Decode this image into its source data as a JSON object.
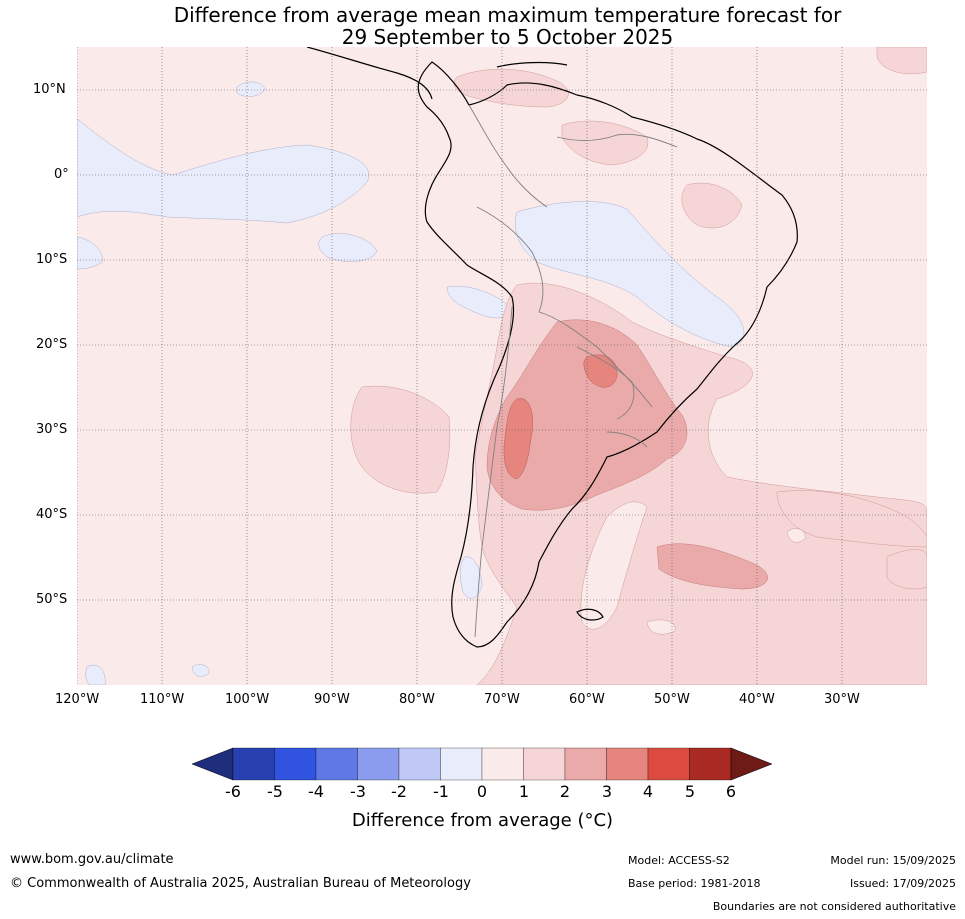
{
  "title": {
    "line1": "Difference from average mean maximum temperature forecast for",
    "line2": "29 September to 5 October 2025"
  },
  "map": {
    "projection": "equirectangular",
    "lon_range": [
      -120,
      -20
    ],
    "lat_range": [
      -60,
      15
    ],
    "grid_lines": true,
    "lat_ticks": [
      "10°N",
      "0°",
      "10°S",
      "20°S",
      "30°S",
      "40°S",
      "50°S"
    ],
    "lon_ticks": [
      "120°W",
      "110°W",
      "100°W",
      "90°W",
      "80°W",
      "70°W",
      "60°W",
      "50°W",
      "40°W",
      "30°W"
    ],
    "colors": {
      "0_to_1": "#fbeaea",
      "-1_to_0": "#e8ecfb",
      "1_to_2": "#f5d5d5",
      "2_to_3": "#ebaaaa",
      "3_to_4": "#e5857e",
      "coastline": "#000000",
      "boundaries": "#808080"
    }
  },
  "colorbar": {
    "labels": [
      "-6",
      "-5",
      "-4",
      "-3",
      "-2",
      "-1",
      "0",
      "1",
      "2",
      "3",
      "4",
      "5",
      "6"
    ],
    "colors": [
      "#1f2d7d",
      "#2940b0",
      "#3154e0",
      "#5f78e6",
      "#8b9cee",
      "#c0c8f5",
      "#e8ecfb",
      "#fbeaea",
      "#f5d5d5",
      "#ebaaaa",
      "#e5857e",
      "#dc4b3f",
      "#a82a22",
      "#6e1a16"
    ],
    "extend": "both",
    "title": "Difference from average (°C)"
  },
  "footer": {
    "website": "www.bom.gov.au/climate",
    "copyright": "© Commonwealth of Australia 2025, Australian Bureau of Meteorology",
    "model": "Model: ACCESS-S2",
    "base_period": "Base period: 1981-2018",
    "model_run": "Model run: 15/09/2025",
    "issued": "Issued: 17/09/2025",
    "disclaimer": "Boundaries are not considered authoritative"
  }
}
